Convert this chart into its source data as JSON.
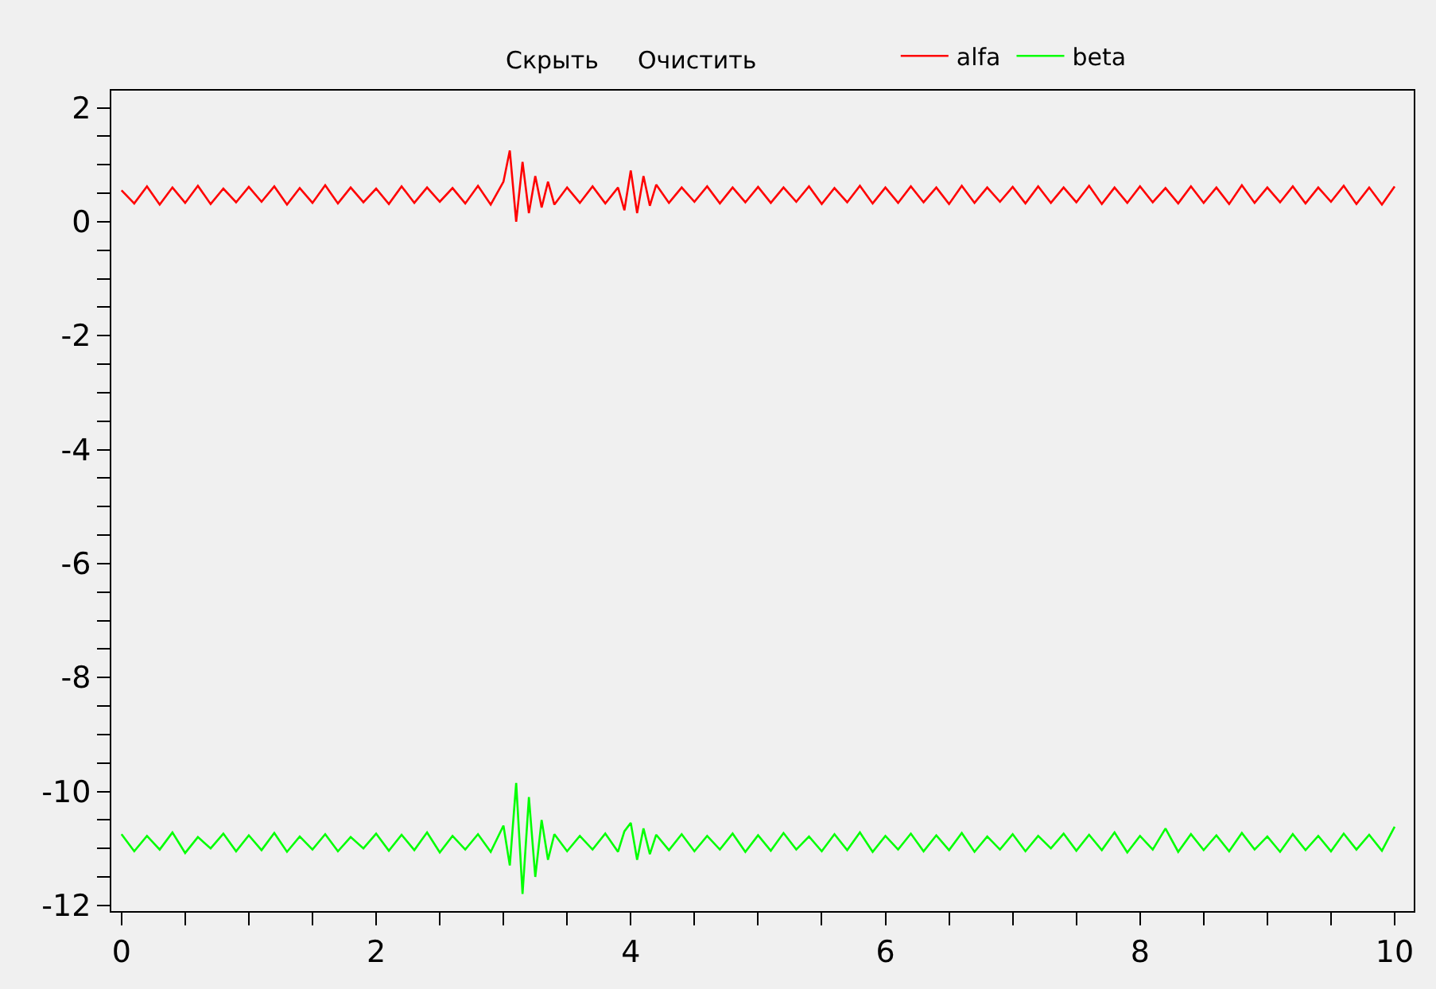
{
  "chart_data": {
    "type": "line",
    "annotations": [
      "Скрыть",
      "Очистить"
    ],
    "x": [
      0.0,
      0.1,
      0.2,
      0.3,
      0.4,
      0.5,
      0.6,
      0.7,
      0.8,
      0.9,
      1.0,
      1.1,
      1.2,
      1.3,
      1.4,
      1.5,
      1.6,
      1.7,
      1.8,
      1.9,
      2.0,
      2.1,
      2.2,
      2.3,
      2.4,
      2.5,
      2.6,
      2.7,
      2.8,
      2.9,
      3.0,
      3.05,
      3.1,
      3.15,
      3.2,
      3.25,
      3.3,
      3.35,
      3.4,
      3.5,
      3.6,
      3.7,
      3.8,
      3.9,
      3.95,
      4.0,
      4.05,
      4.1,
      4.15,
      4.2,
      4.3,
      4.4,
      4.5,
      4.6,
      4.7,
      4.8,
      4.9,
      5.0,
      5.1,
      5.2,
      5.3,
      5.4,
      5.5,
      5.6,
      5.7,
      5.8,
      5.9,
      6.0,
      6.1,
      6.2,
      6.3,
      6.4,
      6.5,
      6.6,
      6.7,
      6.8,
      6.9,
      7.0,
      7.1,
      7.2,
      7.3,
      7.4,
      7.5,
      7.6,
      7.7,
      7.8,
      7.9,
      8.0,
      8.1,
      8.2,
      8.3,
      8.4,
      8.5,
      8.6,
      8.7,
      8.8,
      8.9,
      9.0,
      9.1,
      9.2,
      9.3,
      9.4,
      9.5,
      9.6,
      9.7,
      9.8,
      9.9,
      10.0
    ],
    "series": [
      {
        "name": "alfa",
        "color": "#ff0000",
        "values": [
          0.55,
          0.32,
          0.62,
          0.3,
          0.6,
          0.33,
          0.63,
          0.31,
          0.58,
          0.34,
          0.61,
          0.35,
          0.62,
          0.3,
          0.59,
          0.33,
          0.64,
          0.32,
          0.6,
          0.34,
          0.58,
          0.31,
          0.62,
          0.33,
          0.6,
          0.35,
          0.59,
          0.32,
          0.63,
          0.3,
          0.7,
          1.25,
          0.0,
          1.05,
          0.15,
          0.8,
          0.25,
          0.7,
          0.3,
          0.6,
          0.33,
          0.62,
          0.32,
          0.6,
          0.2,
          0.9,
          0.15,
          0.8,
          0.28,
          0.65,
          0.33,
          0.6,
          0.35,
          0.62,
          0.32,
          0.6,
          0.34,
          0.61,
          0.33,
          0.6,
          0.35,
          0.62,
          0.31,
          0.59,
          0.34,
          0.63,
          0.32,
          0.6,
          0.33,
          0.62,
          0.34,
          0.6,
          0.31,
          0.63,
          0.33,
          0.6,
          0.35,
          0.61,
          0.32,
          0.62,
          0.33,
          0.6,
          0.34,
          0.63,
          0.31,
          0.6,
          0.33,
          0.62,
          0.34,
          0.59,
          0.32,
          0.62,
          0.33,
          0.6,
          0.31,
          0.64,
          0.33,
          0.6,
          0.34,
          0.62,
          0.32,
          0.6,
          0.35,
          0.63,
          0.31,
          0.6,
          0.3,
          0.62
        ]
      },
      {
        "name": "beta",
        "color": "#00ff00",
        "values": [
          -10.75,
          -11.05,
          -10.78,
          -11.02,
          -10.72,
          -11.08,
          -10.8,
          -11.0,
          -10.74,
          -11.05,
          -10.77,
          -11.03,
          -10.73,
          -11.06,
          -10.79,
          -11.02,
          -10.75,
          -11.05,
          -10.8,
          -11.0,
          -10.74,
          -11.04,
          -10.76,
          -11.03,
          -10.72,
          -11.07,
          -10.78,
          -11.02,
          -10.75,
          -11.06,
          -10.6,
          -11.3,
          -9.85,
          -11.8,
          -10.1,
          -11.5,
          -10.5,
          -11.2,
          -10.75,
          -11.05,
          -10.78,
          -11.02,
          -10.74,
          -11.06,
          -10.7,
          -10.55,
          -11.2,
          -10.65,
          -11.1,
          -10.76,
          -11.03,
          -10.75,
          -11.05,
          -10.78,
          -11.02,
          -10.74,
          -11.06,
          -10.77,
          -11.04,
          -10.73,
          -11.02,
          -10.79,
          -11.05,
          -10.75,
          -11.03,
          -10.72,
          -11.06,
          -10.78,
          -11.02,
          -10.74,
          -11.05,
          -10.77,
          -11.03,
          -10.73,
          -11.06,
          -10.79,
          -11.02,
          -10.75,
          -11.05,
          -10.78,
          -11.0,
          -10.74,
          -11.04,
          -10.76,
          -11.03,
          -10.72,
          -11.07,
          -10.78,
          -11.02,
          -10.65,
          -11.06,
          -10.75,
          -11.03,
          -10.77,
          -11.05,
          -10.73,
          -11.02,
          -10.79,
          -11.06,
          -10.75,
          -11.03,
          -10.78,
          -11.05,
          -10.74,
          -11.02,
          -10.76,
          -11.04,
          -10.62
        ]
      }
    ],
    "xlim": [
      -0.08,
      10.15
    ],
    "ylim": [
      -12.1,
      2.3
    ],
    "xticks": [
      0,
      {
        "value": 0.5,
        "label": null
      },
      {
        "value": 1,
        "label": null
      },
      {
        "value": 1.5,
        "label": null
      },
      2,
      {
        "value": 2.5,
        "label": null
      },
      {
        "value": 3,
        "label": null
      },
      {
        "value": 3.5,
        "label": null
      },
      4,
      {
        "value": 4.5,
        "label": null
      },
      {
        "value": 5,
        "label": null
      },
      {
        "value": 5.5,
        "label": null
      },
      6,
      {
        "value": 6.5,
        "label": null
      },
      {
        "value": 7,
        "label": null
      },
      {
        "value": 7.5,
        "label": null
      },
      8,
      {
        "value": 8.5,
        "label": null
      },
      {
        "value": 9,
        "label": null
      },
      {
        "value": 9.5,
        "label": null
      },
      10
    ],
    "yticks": [
      -12,
      {
        "value": -11.5,
        "label": null
      },
      {
        "value": -11,
        "label": null
      },
      {
        "value": -10.5,
        "label": null
      },
      -10,
      {
        "value": -9.5,
        "label": null
      },
      {
        "value": -9,
        "label": null
      },
      {
        "value": -8.5,
        "label": null
      },
      -8,
      {
        "value": -7.5,
        "label": null
      },
      {
        "value": -7,
        "label": null
      },
      {
        "value": -6.5,
        "label": null
      },
      -6,
      {
        "value": -5.5,
        "label": null
      },
      {
        "value": -5,
        "label": null
      },
      {
        "value": -4.5,
        "label": null
      },
      -4,
      {
        "value": -3.5,
        "label": null
      },
      {
        "value": -3,
        "label": null
      },
      {
        "value": -2.5,
        "label": null
      },
      -2,
      {
        "value": -1.5,
        "label": null
      },
      {
        "value": -1,
        "label": null
      },
      {
        "value": -0.5,
        "label": null
      },
      0,
      {
        "value": 0.5,
        "label": null
      },
      {
        "value": 1,
        "label": null
      },
      {
        "value": 1.5,
        "label": null
      },
      2
    ],
    "grid": false,
    "legend": "top",
    "marker": "none",
    "line_style": "solid"
  }
}
